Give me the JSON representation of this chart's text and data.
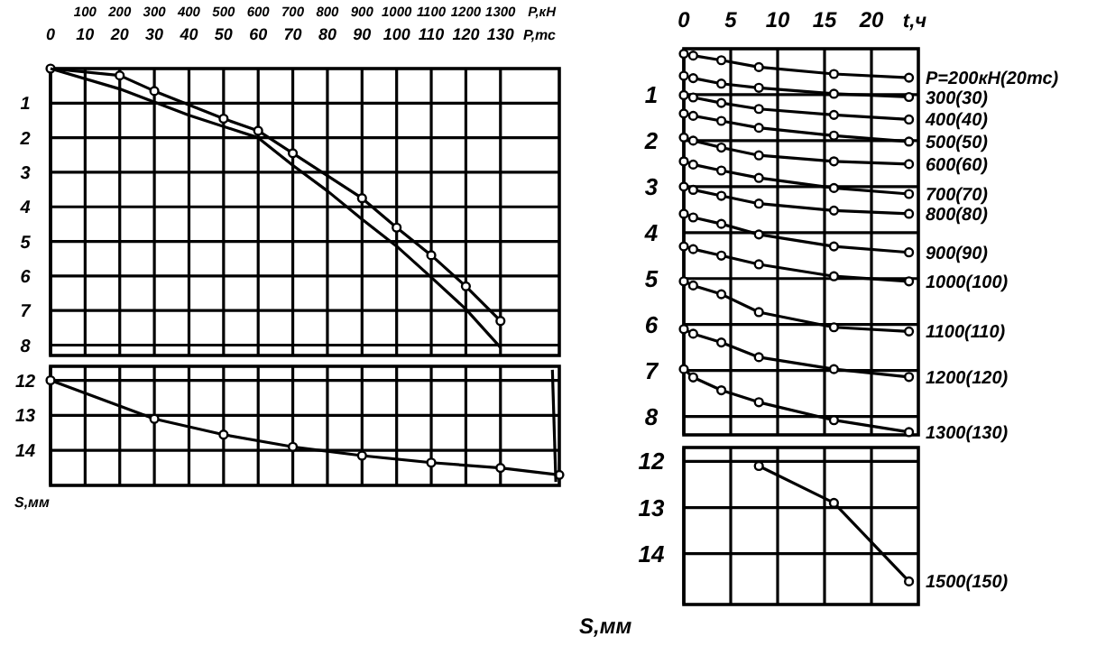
{
  "chart_data": [
    {
      "type": "line",
      "xlabel": "P,тс",
      "x2label": "P,кН",
      "xlim": [
        0,
        147
      ],
      "xticks": [
        0,
        10,
        20,
        30,
        40,
        50,
        60,
        70,
        80,
        90,
        100,
        110,
        120,
        130
      ],
      "x2lim": [
        0,
        1470
      ],
      "x2ticks": [
        100,
        200,
        300,
        400,
        500,
        600,
        700,
        800,
        900,
        1000,
        1100,
        1200,
        1300
      ],
      "ylim": [
        8.3,
        0
      ],
      "yticks": [
        1,
        2,
        3,
        4,
        5,
        6,
        7,
        8
      ],
      "grid": true,
      "marker": "circle",
      "series": [
        {
          "color": "#000000",
          "x": [
            0,
            20,
            30,
            50,
            60,
            70,
            90,
            100,
            110,
            120,
            130
          ],
          "values": [
            0,
            0.2,
            0.65,
            1.45,
            1.8,
            2.45,
            3.75,
            4.6,
            5.4,
            6.3,
            7.3
          ]
        },
        {
          "color": "#000000",
          "marker": "none",
          "x": [
            0,
            20,
            40,
            60,
            70,
            80,
            90,
            100,
            110,
            120,
            130
          ],
          "values": [
            0,
            0.59,
            1.35,
            2.0,
            2.8,
            3.54,
            4.36,
            5.14,
            6.04,
            6.96,
            8.07
          ]
        }
      ]
    },
    {
      "type": "line",
      "ylabel": "S,мм",
      "xlim": [
        0,
        147
      ],
      "xticks": [
        0,
        10,
        20,
        30,
        40,
        50,
        60,
        70,
        80,
        90,
        100,
        110,
        120,
        130
      ],
      "ylim": [
        15,
        11.6
      ],
      "yticks": [
        12,
        13,
        14
      ],
      "grid": true,
      "tick_labels": "y",
      "marker": "circle",
      "series": [
        {
          "color": "#000000",
          "x": [
            0,
            30,
            50,
            70,
            90,
            110,
            130,
            147
          ],
          "values": [
            12,
            13.1,
            13.55,
            13.9,
            14.15,
            14.35,
            14.5,
            14.7
          ]
        },
        {
          "color": "#000000",
          "marker": "none",
          "x": [
            145,
            146
          ],
          "values": [
            11.7,
            14.9
          ]
        }
      ]
    },
    {
      "type": "line",
      "xlabel": "t,ч",
      "xlim": [
        0,
        25
      ],
      "xticks": [
        0,
        5,
        10,
        15,
        20
      ],
      "ylim": [
        8.4,
        0
      ],
      "yticks": [
        1,
        2,
        3,
        4,
        5,
        6,
        7,
        8
      ],
      "grid": true,
      "marker": "circle",
      "series": [
        {
          "name": "P=200кН(20тс)",
          "color": "#000000",
          "x": [
            0,
            1,
            4,
            8,
            16,
            24
          ],
          "values": [
            0.11,
            0.15,
            0.25,
            0.4,
            0.55,
            0.63
          ]
        },
        {
          "name": "300(30)",
          "color": "#000000",
          "x": [
            0,
            1,
            4,
            8,
            16,
            24
          ],
          "values": [
            0.59,
            0.64,
            0.76,
            0.85,
            0.98,
            1.05
          ]
        },
        {
          "name": "400(40)",
          "color": "#000000",
          "x": [
            0,
            1,
            4,
            8,
            16,
            24
          ],
          "values": [
            1.01,
            1.06,
            1.18,
            1.31,
            1.44,
            1.54
          ]
        },
        {
          "name": "500(50)",
          "color": "#000000",
          "x": [
            0,
            1,
            4,
            8,
            16,
            24
          ],
          "values": [
            1.41,
            1.46,
            1.57,
            1.72,
            1.89,
            2.02
          ]
        },
        {
          "name": "600(60)",
          "color": "#000000",
          "x": [
            0,
            1,
            4,
            8,
            16,
            24
          ],
          "values": [
            1.93,
            2.0,
            2.15,
            2.32,
            2.45,
            2.51
          ]
        },
        {
          "name": "700(70)",
          "color": "#000000",
          "x": [
            0,
            1,
            4,
            8,
            16,
            24
          ],
          "values": [
            2.45,
            2.52,
            2.65,
            2.81,
            3.03,
            3.16
          ]
        },
        {
          "name": "800(80)",
          "color": "#000000",
          "x": [
            0,
            1,
            4,
            8,
            16,
            24
          ],
          "values": [
            3.0,
            3.07,
            3.2,
            3.37,
            3.52,
            3.59
          ]
        },
        {
          "name": "900(90)",
          "color": "#000000",
          "x": [
            0,
            1,
            4,
            8,
            16,
            24
          ],
          "values": [
            3.59,
            3.67,
            3.81,
            4.04,
            4.3,
            4.43
          ]
        },
        {
          "name": "1000(100)",
          "color": "#000000",
          "x": [
            0,
            1,
            4,
            8,
            16,
            24
          ],
          "values": [
            4.3,
            4.36,
            4.5,
            4.69,
            4.95,
            5.06
          ]
        },
        {
          "name": "1100(110)",
          "color": "#000000",
          "x": [
            0,
            1,
            4,
            8,
            16,
            24
          ],
          "values": [
            5.06,
            5.15,
            5.34,
            5.73,
            6.06,
            6.15
          ]
        },
        {
          "name": "1200(120)",
          "color": "#000000",
          "x": [
            0,
            1,
            4,
            8,
            16,
            24
          ],
          "values": [
            6.1,
            6.2,
            6.39,
            6.71,
            6.97,
            7.14
          ]
        },
        {
          "name": "1300(130)",
          "color": "#000000",
          "x": [
            0,
            1,
            4,
            8,
            16,
            24
          ],
          "values": [
            6.97,
            7.15,
            7.43,
            7.69,
            8.08,
            8.34
          ]
        }
      ]
    },
    {
      "type": "line",
      "ylabel": "S,мм",
      "xlim": [
        0,
        25
      ],
      "xticks": [
        0,
        5,
        10,
        15,
        20
      ],
      "ylim": [
        15.1,
        11.7
      ],
      "yticks": [
        12,
        13,
        14
      ],
      "grid": true,
      "tick_labels": "y",
      "marker": "circle",
      "series": [
        {
          "name": "1500(150)",
          "color": "#000000",
          "x": [
            8,
            16,
            24
          ],
          "values": [
            12.1,
            12.9,
            14.6
          ]
        }
      ]
    }
  ]
}
